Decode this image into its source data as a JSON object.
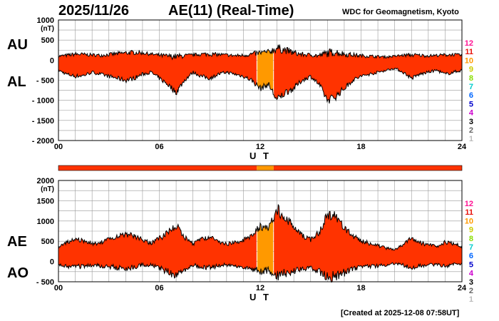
{
  "header": {
    "date": "2025/11/26",
    "title": "AE(11) (Real-Time)",
    "source": "WDC for Geomagnetism, Kyoto",
    "created": "[Created at 2025-12-08 07:58UT]"
  },
  "colors": {
    "fill_main": "#ff3300",
    "fill_alt": "#ff9900",
    "outline": "#000000",
    "grid": "#999999"
  },
  "legend": {
    "items": [
      {
        "label": "12",
        "color": "#ff1493"
      },
      {
        "label": "11",
        "color": "#e8120c"
      },
      {
        "label": "10",
        "color": "#ff9900"
      },
      {
        "label": "9",
        "color": "#cccc00"
      },
      {
        "label": "8",
        "color": "#88dd00"
      },
      {
        "label": "7",
        "color": "#00cccc"
      },
      {
        "label": "6",
        "color": "#0066ff"
      },
      {
        "label": "5",
        "color": "#0000cc"
      },
      {
        "label": "4",
        "color": "#cc00cc"
      },
      {
        "label": "3",
        "color": "#000000"
      },
      {
        "label": "2",
        "color": "#666666"
      },
      {
        "label": "1",
        "color": "#bbbbbb"
      }
    ]
  },
  "chart_data": [
    {
      "type": "area",
      "name": "upper",
      "labels": {
        "top": "AU",
        "bottom": "AL"
      },
      "unit": "(nT)",
      "xlabel": "U T",
      "xlim": [
        0,
        24
      ],
      "xticks": [
        "00",
        "06",
        "12",
        "18",
        "24"
      ],
      "xtick_values": [
        0,
        6,
        12,
        18,
        24
      ],
      "ylim": [
        -2000,
        1000
      ],
      "yticks": [
        "1000",
        "500",
        "0",
        "- 500",
        "- 1000",
        "- 1500",
        "- 2000"
      ],
      "ytick_values": [
        1000,
        500,
        0,
        -500,
        -1000,
        -1500,
        -2000
      ],
      "grid": true,
      "highlight_range": [
        11.8,
        12.8
      ],
      "series": [
        {
          "x": [
            0,
            0.5,
            1,
            1.5,
            2,
            2.5,
            3,
            3.5,
            4,
            4.5,
            5,
            5.5,
            6,
            6.5,
            7,
            7.5,
            8,
            8.5,
            9,
            9.5,
            10,
            10.5,
            11,
            11.5,
            12,
            12.5,
            13,
            13.5,
            14,
            14.5,
            15,
            15.5,
            16,
            16.5,
            17,
            17.5,
            18,
            18.5,
            19,
            19.5,
            20,
            20.5,
            21,
            21.5,
            22,
            22.5,
            23,
            23.5,
            24
          ],
          "y": [
            100,
            120,
            150,
            140,
            130,
            120,
            140,
            160,
            180,
            190,
            180,
            150,
            120,
            100,
            90,
            110,
            130,
            150,
            150,
            140,
            130,
            110,
            120,
            150,
            180,
            200,
            300,
            250,
            180,
            140,
            130,
            110,
            180,
            200,
            150,
            130,
            110,
            100,
            90,
            80,
            100,
            120,
            130,
            120,
            110,
            120,
            130,
            140,
            120
          ]
        },
        {
          "x": [
            0,
            0.5,
            1,
            1.5,
            2,
            2.5,
            3,
            3.5,
            4,
            4.5,
            5,
            5.5,
            6,
            6.5,
            7,
            7.5,
            8,
            8.5,
            9,
            9.5,
            10,
            10.5,
            11,
            11.5,
            12,
            12.5,
            13,
            13.5,
            14,
            14.5,
            15,
            15.5,
            16,
            16.5,
            17,
            17.5,
            18,
            18.5,
            19,
            19.5,
            20,
            20.5,
            21,
            21.5,
            22,
            22.5,
            23,
            23.5,
            24
          ],
          "y": [
            -250,
            -350,
            -400,
            -380,
            -300,
            -350,
            -400,
            -450,
            -500,
            -450,
            -350,
            -300,
            -450,
            -600,
            -800,
            -500,
            -300,
            -400,
            -450,
            -350,
            -300,
            -350,
            -400,
            -500,
            -700,
            -600,
            -1000,
            -800,
            -700,
            -500,
            -400,
            -600,
            -1000,
            -900,
            -700,
            -500,
            -400,
            -350,
            -300,
            -250,
            -200,
            -300,
            -450,
            -350,
            -300,
            -250,
            -350,
            -300,
            -250
          ]
        }
      ]
    },
    {
      "type": "area",
      "name": "lower",
      "labels": {
        "top": "AE",
        "bottom": "AO"
      },
      "unit": "(nT)",
      "xlabel": "U T",
      "xlim": [
        0,
        24
      ],
      "xticks": [
        "00",
        "06",
        "12",
        "18",
        "24"
      ],
      "xtick_values": [
        0,
        6,
        12,
        18,
        24
      ],
      "ylim": [
        -500,
        2000
      ],
      "yticks": [
        "2000",
        "1500",
        "1000",
        "500",
        "0",
        "- 500"
      ],
      "ytick_values": [
        2000,
        1500,
        1000,
        500,
        0,
        -500
      ],
      "grid": true,
      "highlight_range": [
        11.8,
        12.8
      ],
      "series": [
        {
          "x": [
            0,
            0.5,
            1,
            1.5,
            2,
            2.5,
            3,
            3.5,
            4,
            4.5,
            5,
            5.5,
            6,
            6.5,
            7,
            7.5,
            8,
            8.5,
            9,
            9.5,
            10,
            10.5,
            11,
            11.5,
            12,
            12.5,
            13,
            13.5,
            14,
            14.5,
            15,
            15.5,
            16,
            16.5,
            17,
            17.5,
            18,
            18.5,
            19,
            19.5,
            20,
            20.5,
            21,
            21.5,
            22,
            22.5,
            23,
            23.5,
            24
          ],
          "y": [
            350,
            470,
            550,
            520,
            430,
            470,
            540,
            610,
            680,
            640,
            530,
            450,
            570,
            700,
            890,
            610,
            430,
            550,
            600,
            490,
            430,
            460,
            520,
            650,
            880,
            800,
            1300,
            1050,
            880,
            640,
            530,
            710,
            1180,
            1100,
            850,
            630,
            510,
            450,
            390,
            330,
            300,
            420,
            580,
            470,
            410,
            370,
            480,
            440,
            370
          ]
        },
        {
          "x": [
            0,
            0.5,
            1,
            1.5,
            2,
            2.5,
            3,
            3.5,
            4,
            4.5,
            5,
            5.5,
            6,
            6.5,
            7,
            7.5,
            8,
            8.5,
            9,
            9.5,
            10,
            10.5,
            11,
            11.5,
            12,
            12.5,
            13,
            13.5,
            14,
            14.5,
            15,
            15.5,
            16,
            16.5,
            17,
            17.5,
            18,
            18.5,
            19,
            19.5,
            20,
            20.5,
            21,
            21.5,
            22,
            22.5,
            23,
            23.5,
            24
          ],
          "y": [
            -75,
            -115,
            -125,
            -120,
            -85,
            -115,
            -130,
            -145,
            -160,
            -130,
            -85,
            -75,
            -165,
            -250,
            -355,
            -195,
            -85,
            -125,
            -150,
            -105,
            -85,
            -120,
            -140,
            -175,
            -260,
            -200,
            -350,
            -275,
            -260,
            -180,
            -135,
            -245,
            -410,
            -350,
            -275,
            -185,
            -145,
            -125,
            -105,
            -85,
            -50,
            -90,
            -160,
            -115,
            -95,
            -65,
            -110,
            -80,
            -65
          ]
        }
      ]
    }
  ]
}
